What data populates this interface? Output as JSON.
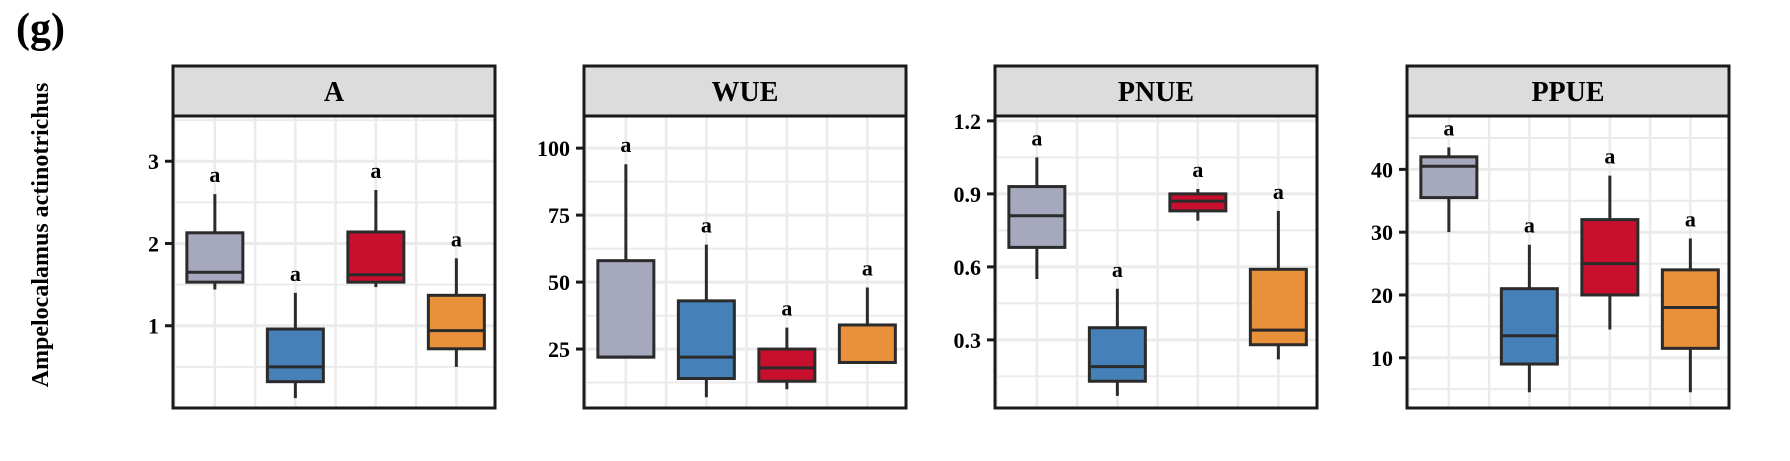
{
  "figure": {
    "panel_letter": "(g)",
    "y_label": "Ampelocalamus actinotrichus"
  },
  "colors": {
    "group1": "#a6a9bd",
    "group2": "#4580b8",
    "group3": "#c8102e",
    "group4": "#e8913a",
    "strip_bg": "#dcdcdc",
    "grid": "#ebebeb",
    "outline": "#2b2b2b"
  },
  "chart_data": [
    {
      "type": "box",
      "title": "A",
      "ylim": [
        0,
        3.55
      ],
      "yticks": [
        1,
        2,
        3
      ],
      "ytick_labels": [
        "1",
        "2",
        "3"
      ],
      "grid": true,
      "boxes": [
        {
          "min": 1.44,
          "q1": 1.53,
          "median": 1.65,
          "q3": 2.13,
          "max": 2.6,
          "label": "a"
        },
        {
          "min": 0.12,
          "q1": 0.32,
          "median": 0.5,
          "q3": 0.96,
          "max": 1.4,
          "label": "a"
        },
        {
          "min": 1.47,
          "q1": 1.53,
          "median": 1.62,
          "q3": 2.14,
          "max": 2.65,
          "label": "a"
        },
        {
          "min": 0.5,
          "q1": 0.72,
          "median": 0.94,
          "q3": 1.37,
          "max": 1.82,
          "label": "a"
        }
      ]
    },
    {
      "type": "box",
      "title": "WUE",
      "ylim": [
        3,
        112
      ],
      "yticks": [
        25,
        50,
        75,
        100
      ],
      "ytick_labels": [
        "25",
        "50",
        "75",
        "100"
      ],
      "grid": true,
      "boxes": [
        {
          "min": 22,
          "q1": 22,
          "median": 22,
          "q3": 58,
          "max": 94,
          "label": "a"
        },
        {
          "min": 7,
          "q1": 14,
          "median": 22,
          "q3": 43,
          "max": 64,
          "label": "a"
        },
        {
          "min": 10,
          "q1": 13,
          "median": 18,
          "q3": 25,
          "max": 33,
          "label": "a"
        },
        {
          "min": 20,
          "q1": 20,
          "median": 20,
          "q3": 34,
          "max": 48,
          "label": "a"
        }
      ]
    },
    {
      "type": "box",
      "title": "PNUE",
      "ylim": [
        0.02,
        1.22
      ],
      "yticks": [
        0.3,
        0.6,
        0.9,
        1.2
      ],
      "ytick_labels": [
        "0.3",
        "0.6",
        "0.9",
        "1.2"
      ],
      "grid": true,
      "boxes": [
        {
          "min": 0.55,
          "q1": 0.68,
          "median": 0.81,
          "q3": 0.93,
          "max": 1.05,
          "label": "a"
        },
        {
          "min": 0.07,
          "q1": 0.13,
          "median": 0.19,
          "q3": 0.35,
          "max": 0.51,
          "label": "a"
        },
        {
          "min": 0.79,
          "q1": 0.83,
          "median": 0.87,
          "q3": 0.9,
          "max": 0.92,
          "label": "a"
        },
        {
          "min": 0.22,
          "q1": 0.28,
          "median": 0.34,
          "q3": 0.59,
          "max": 0.83,
          "label": "a"
        }
      ]
    },
    {
      "type": "box",
      "title": "PPUE",
      "ylim": [
        2,
        48.5
      ],
      "yticks": [
        10,
        20,
        30,
        40
      ],
      "ytick_labels": [
        "10",
        "20",
        "30",
        "40"
      ],
      "grid": true,
      "boxes": [
        {
          "min": 30,
          "q1": 35.5,
          "median": 40.5,
          "q3": 42,
          "max": 43.5,
          "label": "a"
        },
        {
          "min": 4.5,
          "q1": 9,
          "median": 13.5,
          "q3": 21,
          "max": 28,
          "label": "a"
        },
        {
          "min": 14.5,
          "q1": 20,
          "median": 25,
          "q3": 32,
          "max": 39,
          "label": "a"
        },
        {
          "min": 4.5,
          "q1": 11.5,
          "median": 18,
          "q3": 24,
          "max": 29,
          "label": "a"
        }
      ]
    }
  ]
}
